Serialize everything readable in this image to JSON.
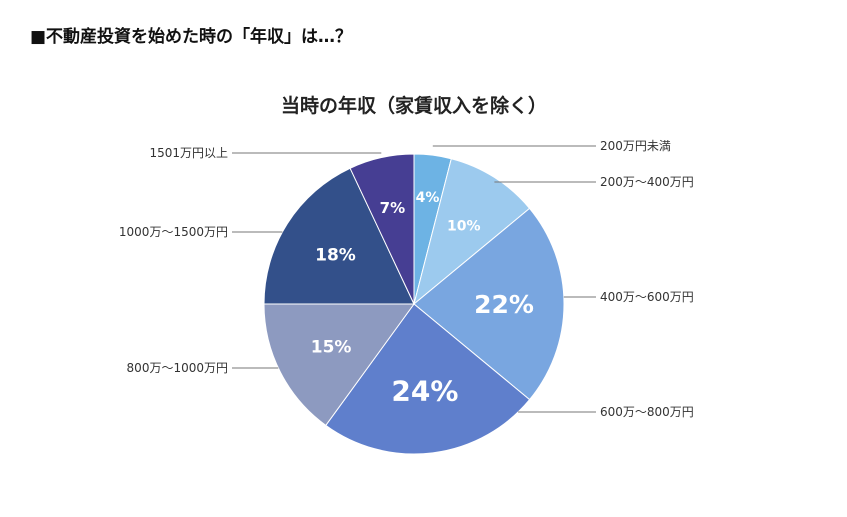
{
  "page": {
    "heading": "■不動産投資を始めた時の「年収」は…？"
  },
  "chart_data": {
    "type": "pie",
    "title": "当時の年収（家賃収入を除く）",
    "categories": [
      "200万円未満",
      "200万〜400万円",
      "400万〜600万円",
      "600万〜800万円",
      "800万〜1000万円",
      "1000万〜1500万円",
      "1501万円以上"
    ],
    "values": [
      4,
      10,
      22,
      24,
      15,
      18,
      7
    ],
    "value_labels": [
      "4%",
      "10%",
      "22%",
      "24%",
      "15%",
      "18%",
      "7%"
    ],
    "colors": [
      "#6db3e4",
      "#9ccaee",
      "#79a6e0",
      "#5f7fcc",
      "#8d9ac0",
      "#33508a",
      "#463e93"
    ],
    "start": "12 o'clock",
    "direction": "clockwise"
  }
}
